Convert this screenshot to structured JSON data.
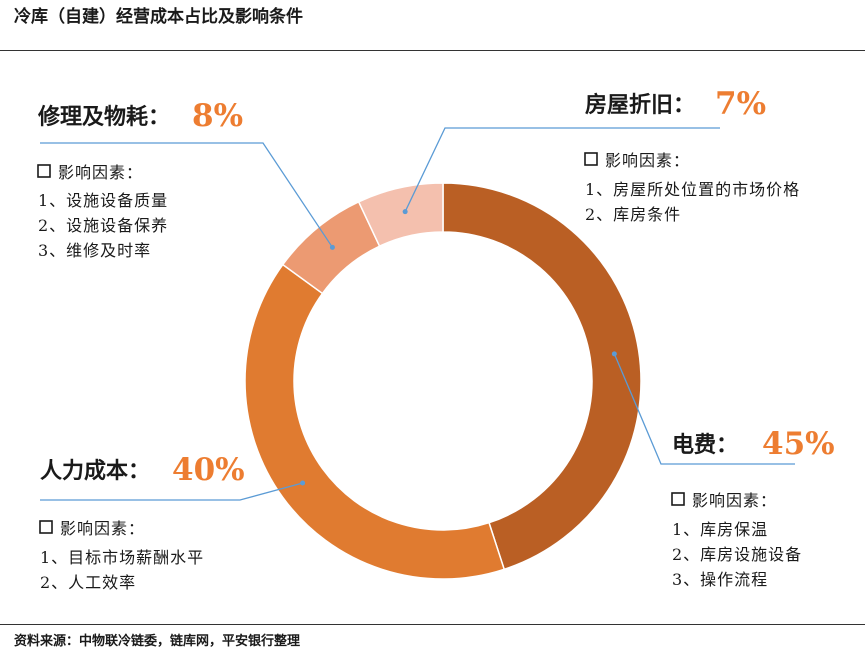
{
  "title": "冷库（自建）经营成本占比及影响条件",
  "source": "资料来源：中物联冷链委，链库网，平安银行整理",
  "colors": {
    "electricity": "#BA5F24",
    "labor": "#E07B30",
    "repair": "#EC9A72",
    "depreciation": "#F4C0AE",
    "percent_text": "#ED7D31",
    "leader_line": "#5B9BD5"
  },
  "chart_data": {
    "type": "pie",
    "donut": true,
    "title": "冷库（自建）经营成本占比及影响条件",
    "segments": [
      {
        "key": "electricity",
        "name": "电费",
        "label": "电费：",
        "value": 45,
        "pct": "45%",
        "factors_heading": "影响因素：",
        "factors": [
          "1、库房保温",
          "2、库房设施设备",
          "3、操作流程"
        ]
      },
      {
        "key": "labor",
        "name": "人力成本",
        "label": "人力成本：",
        "value": 40,
        "pct": "40%",
        "factors_heading": "影响因素：",
        "factors": [
          "1、目标市场薪酬水平",
          "2、人工效率"
        ]
      },
      {
        "key": "repair",
        "name": "修理及物耗",
        "label": "修理及物耗：",
        "value": 8,
        "pct": "8%",
        "factors_heading": "影响因素：",
        "factors": [
          "1、设施设备质量",
          "2、设施设备保养",
          "3、维修及时率"
        ]
      },
      {
        "key": "depreciation",
        "name": "房屋折旧",
        "label": "房屋折旧：",
        "value": 7,
        "pct": "7%",
        "factors_heading": "影响因素：",
        "factors": [
          "1、房屋所处位置的市场价格",
          "2、库房条件"
        ]
      }
    ]
  }
}
